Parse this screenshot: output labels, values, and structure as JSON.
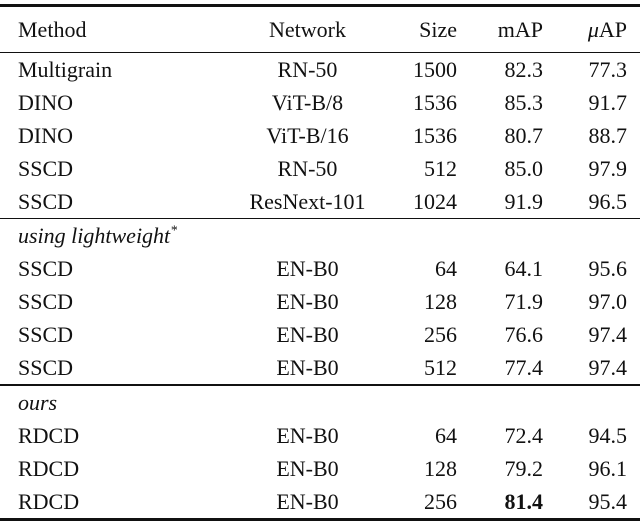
{
  "table": {
    "header": {
      "method": "Method",
      "network": "Network",
      "size": "Size",
      "map": "mAP",
      "uap_prefix": "μ",
      "uap_rest": "AP"
    },
    "sections": [
      {
        "label": null,
        "rows": [
          {
            "cells": [
              "Multigrain",
              "RN-50",
              "1500",
              "82.3",
              "77.3"
            ]
          },
          {
            "cells": [
              "DINO",
              "ViT-B/8",
              "1536",
              "85.3",
              "91.7"
            ]
          },
          {
            "cells": [
              "DINO",
              "ViT-B/16",
              "1536",
              "80.7",
              "88.7"
            ]
          },
          {
            "cells": [
              "SSCD",
              "RN-50",
              "512",
              "85.0",
              "97.9"
            ]
          },
          {
            "cells": [
              "SSCD",
              "ResNext-101",
              "1024",
              "91.9",
              "96.5"
            ]
          }
        ]
      },
      {
        "label": "using lightweight",
        "label_sup": "*",
        "rows": [
          {
            "cells": [
              "SSCD",
              "EN-B0",
              "64",
              "64.1",
              "95.6"
            ]
          },
          {
            "cells": [
              "SSCD",
              "EN-B0",
              "128",
              "71.9",
              "97.0"
            ]
          },
          {
            "cells": [
              "SSCD",
              "EN-B0",
              "256",
              "76.6",
              "97.4"
            ]
          },
          {
            "cells": [
              "SSCD",
              "EN-B0",
              "512",
              "77.4",
              "97.4"
            ]
          }
        ]
      },
      {
        "label": "ours",
        "label_sup": "",
        "rows": [
          {
            "cells": [
              "RDCD",
              "EN-B0",
              "64",
              "72.4",
              "94.5"
            ]
          },
          {
            "cells": [
              "RDCD",
              "EN-B0",
              "128",
              "79.2",
              "96.1"
            ]
          },
          {
            "cells": [
              "RDCD",
              "EN-B0",
              "256",
              "81.4",
              "95.4"
            ],
            "bold_cells": [
              3
            ]
          }
        ]
      }
    ],
    "colors": {
      "text": "#111111",
      "rule": "#111111",
      "background": "#ffffff"
    }
  }
}
